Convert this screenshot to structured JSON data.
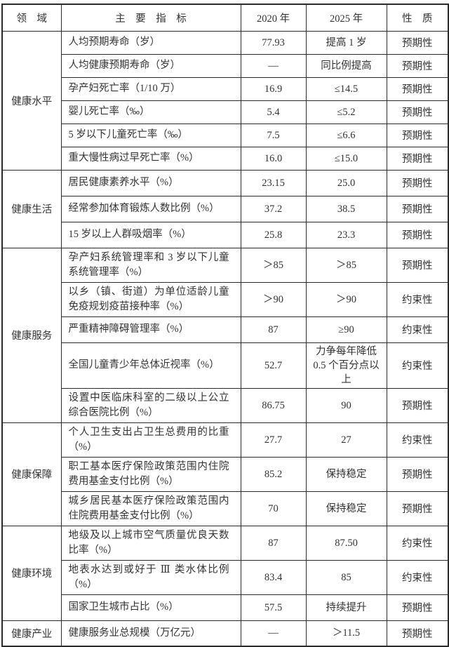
{
  "table": {
    "columns": [
      "领　域",
      "主　要　指　标",
      "2020 年",
      "2025 年",
      "性　质"
    ],
    "sections": [
      {
        "domain": "健康水平",
        "rows": [
          {
            "indicator": "人均预期寿命（岁）",
            "y2020": "77.93",
            "y2025": "提高 1 岁",
            "nature": "预期性",
            "tall": false
          },
          {
            "indicator": "人均健康预期寿命（岁）",
            "y2020": "—",
            "y2025": "同比例提高",
            "nature": "预期性",
            "tall": false
          },
          {
            "indicator": "孕产妇死亡率（1/10 万）",
            "y2020": "16.9",
            "y2025": "≤14.5",
            "nature": "预期性",
            "tall": false
          },
          {
            "indicator": "婴儿死亡率（‰）",
            "y2020": "5.4",
            "y2025": "≤5.2",
            "nature": "预期性",
            "tall": false
          },
          {
            "indicator": "5 岁以下儿童死亡率（‰）",
            "y2020": "7.5",
            "y2025": "≤6.6",
            "nature": "预期性",
            "tall": false
          },
          {
            "indicator": "重大慢性病过早死亡率（%）",
            "y2020": "16.0",
            "y2025": "≤15.0",
            "nature": "预期性",
            "tall": false
          }
        ]
      },
      {
        "domain": "健康生活",
        "rows": [
          {
            "indicator": "居民健康素养水平（%）",
            "y2020": "23.15",
            "y2025": "25.0",
            "nature": "预期性",
            "tall": false
          },
          {
            "indicator": "经常参加体育锻炼人数比例（%）",
            "y2020": "37.2",
            "y2025": "38.5",
            "nature": "预期性",
            "tall": false
          },
          {
            "indicator": "15 岁以上人群吸烟率（%）",
            "y2020": "25.8",
            "y2025": "23.3",
            "nature": "预期性",
            "tall": false
          }
        ]
      },
      {
        "domain": "健康服务",
        "rows": [
          {
            "indicator": "孕产妇系统管理率和 3 岁以下儿童系统管理率（%）",
            "y2020": "＞85",
            "y2025": "＞85",
            "nature": "预期性",
            "tall": true
          },
          {
            "indicator": "以乡（镇、街道）为单位适龄儿童免疫规划疫苗接种率（%）",
            "y2020": "＞90",
            "y2025": "＞90",
            "nature": "约束性",
            "tall": true
          },
          {
            "indicator": "严重精神障碍管理率（%）",
            "y2020": "87",
            "y2025": "≥90",
            "nature": "约束性",
            "tall": false
          },
          {
            "indicator": "全国儿童青少年总体近视率（%）",
            "y2020": "52.7",
            "y2025": "力争每年降低 0.5 个百分点以上",
            "nature": "约束性",
            "tall": true
          },
          {
            "indicator": "设置中医临床科室的二级以上公立综合医院比例（%）",
            "y2020": "86.75",
            "y2025": "90",
            "nature": "预期性",
            "tall": true
          }
        ]
      },
      {
        "domain": "健康保障",
        "rows": [
          {
            "indicator": "个人卫生支出占卫生总费用的比重（%）",
            "y2020": "27.7",
            "y2025": "27",
            "nature": "约束性",
            "tall": true
          },
          {
            "indicator": "职工基本医疗保险政策范围内住院费用基金支付比例（%）",
            "y2020": "85.2",
            "y2025": "保持稳定",
            "nature": "预期性",
            "tall": true
          },
          {
            "indicator": "城乡居民基本医疗保险政策范围内住院费用基金支付比例（%）",
            "y2020": "70",
            "y2025": "保持稳定",
            "nature": "预期性",
            "tall": true
          }
        ]
      },
      {
        "domain": "健康环境",
        "rows": [
          {
            "indicator": "地级及以上城市空气质量优良天数比率（%）",
            "y2020": "87",
            "y2025": "87.50",
            "nature": "约束性",
            "tall": true
          },
          {
            "indicator": "地表水达到或好于 Ⅲ 类水体比例（%）",
            "y2020": "83.4",
            "y2025": "85",
            "nature": "约束性",
            "tall": true
          },
          {
            "indicator": "国家卫生城市占比（%）",
            "y2020": "57.5",
            "y2025": "持续提升",
            "nature": "预期性",
            "tall": false
          }
        ]
      },
      {
        "domain": "健康产业",
        "rows": [
          {
            "indicator": "健康服务业总规模（万亿元）",
            "y2020": "—",
            "y2025": "＞11.5",
            "nature": "预期性",
            "tall": false
          }
        ]
      }
    ]
  },
  "colors": {
    "border": "#2b2b2b",
    "text": "#333333",
    "background": "#ffffff"
  }
}
